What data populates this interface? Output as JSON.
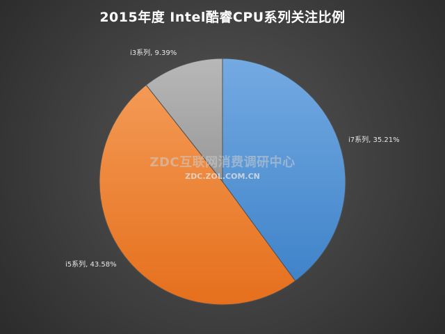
{
  "chart_data": {
    "type": "pie",
    "title": "2015年度 Intel酷睿CPU系列关注比例",
    "slices": [
      {
        "name": "i7系列",
        "value": 35.21,
        "label": "i7系列, 35.21%",
        "color": "#5b9bd5"
      },
      {
        "name": "i5系列",
        "value": 43.58,
        "label": "i5系列, 43.58%",
        "color": "#ed7d31"
      },
      {
        "name": "i3系列",
        "value": 9.39,
        "label": "i3系列, 9.39%",
        "color": "#a5a5a5"
      }
    ],
    "start_angle": "12 o'clock",
    "direction": "clockwise",
    "legend": "none"
  },
  "watermark": {
    "main": "ZDC互联网消费调研中心",
    "sub": "ZDC.ZOL.COM.CN"
  }
}
